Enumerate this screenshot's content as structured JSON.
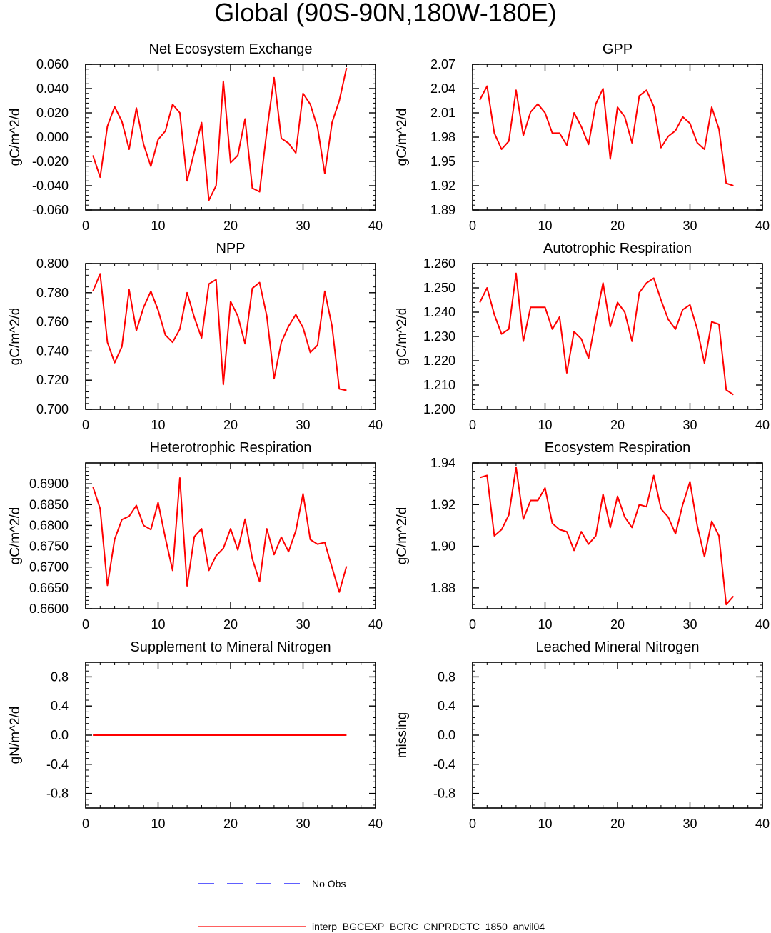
{
  "page_title": "Global (90S-90N,180W-180E)",
  "colors": {
    "model": "#ff0000",
    "obs": "#0000ff",
    "axis": "#000000"
  },
  "legend": {
    "obs_label": "No Obs",
    "model_label": "interp_BGCEXP_BCRC_CNPRDCTC_1850_anvil04"
  },
  "chart_data": [
    {
      "type": "line",
      "title": "Net Ecosystem Exchange",
      "ylabel": "gC/m^2/d",
      "xlim": [
        0,
        40
      ],
      "ylim": [
        -0.06,
        0.06
      ],
      "xticks": [
        0,
        10,
        20,
        30,
        40
      ],
      "xtick_labels": [
        "0",
        "10",
        "20",
        "30",
        "40"
      ],
      "yticks": [
        -0.06,
        -0.04,
        -0.02,
        0.0,
        0.02,
        0.04,
        0.06
      ],
      "ytick_labels": [
        "-0.060",
        "-0.040",
        "-0.020",
        "0.000",
        "0.020",
        "0.040",
        "0.060"
      ],
      "x": [
        1,
        2,
        3,
        4,
        5,
        6,
        7,
        8,
        9,
        10,
        11,
        12,
        13,
        14,
        15,
        16,
        17,
        18,
        19,
        20,
        21,
        22,
        23,
        24,
        25,
        26,
        27,
        28,
        29,
        30,
        31,
        32,
        33,
        34,
        35,
        36
      ],
      "series": [
        {
          "name": "interp_BGCEXP_BCRC_CNPRDCTC_1850_anvil04",
          "values": [
            -0.015,
            -0.033,
            0.009,
            0.025,
            0.013,
            -0.01,
            0.024,
            -0.006,
            -0.024,
            -0.002,
            0.005,
            0.027,
            0.02,
            -0.036,
            -0.012,
            0.012,
            -0.052,
            -0.04,
            0.046,
            -0.021,
            -0.015,
            0.015,
            -0.042,
            -0.045,
            0.005,
            0.049,
            -0.001,
            -0.005,
            -0.013,
            0.036,
            0.027,
            0.008,
            -0.03,
            0.012,
            0.03,
            0.057
          ]
        }
      ]
    },
    {
      "type": "line",
      "title": "GPP",
      "ylabel": "gC/m^2/d",
      "xlim": [
        0,
        40
      ],
      "ylim": [
        1.89,
        2.07
      ],
      "xticks": [
        0,
        10,
        20,
        30,
        40
      ],
      "xtick_labels": [
        "0",
        "10",
        "20",
        "30",
        "40"
      ],
      "yticks": [
        1.89,
        1.92,
        1.95,
        1.98,
        2.01,
        2.04,
        2.07
      ],
      "ytick_labels": [
        "1.89",
        "1.92",
        "1.95",
        "1.98",
        "2.01",
        "2.04",
        "2.07"
      ],
      "x": [
        1,
        2,
        3,
        4,
        5,
        6,
        7,
        8,
        9,
        10,
        11,
        12,
        13,
        14,
        15,
        16,
        17,
        18,
        19,
        20,
        21,
        22,
        23,
        24,
        25,
        26,
        27,
        28,
        29,
        30,
        31,
        32,
        33,
        34,
        35,
        36
      ],
      "series": [
        {
          "name": "interp_BGCEXP_BCRC_CNPRDCTC_1850_anvil04",
          "values": [
            2.026,
            2.043,
            1.985,
            1.965,
            1.975,
            2.038,
            1.982,
            2.011,
            2.021,
            2.01,
            1.985,
            1.985,
            1.97,
            2.01,
            1.993,
            1.971,
            2.021,
            2.04,
            1.953,
            2.017,
            2.005,
            1.973,
            2.031,
            2.038,
            2.018,
            1.967,
            1.981,
            1.988,
            2.005,
            1.997,
            1.973,
            1.965,
            2.017,
            1.99,
            1.923,
            1.92
          ]
        }
      ]
    },
    {
      "type": "line",
      "title": "NPP",
      "ylabel": "gC/m^2/d",
      "xlim": [
        0,
        40
      ],
      "ylim": [
        0.7,
        0.8
      ],
      "xticks": [
        0,
        10,
        20,
        30,
        40
      ],
      "xtick_labels": [
        "0",
        "10",
        "20",
        "30",
        "40"
      ],
      "yticks": [
        0.7,
        0.72,
        0.74,
        0.76,
        0.78,
        0.8
      ],
      "ytick_labels": [
        "0.700",
        "0.720",
        "0.740",
        "0.760",
        "0.780",
        "0.800"
      ],
      "x": [
        1,
        2,
        3,
        4,
        5,
        6,
        7,
        8,
        9,
        10,
        11,
        12,
        13,
        14,
        15,
        16,
        17,
        18,
        19,
        20,
        21,
        22,
        23,
        24,
        25,
        26,
        27,
        28,
        29,
        30,
        31,
        32,
        33,
        34,
        35,
        36
      ],
      "series": [
        {
          "name": "interp_BGCEXP_BCRC_CNPRDCTC_1850_anvil04",
          "values": [
            0.781,
            0.793,
            0.746,
            0.732,
            0.743,
            0.782,
            0.754,
            0.77,
            0.781,
            0.768,
            0.751,
            0.746,
            0.755,
            0.78,
            0.763,
            0.749,
            0.786,
            0.789,
            0.717,
            0.774,
            0.764,
            0.745,
            0.783,
            0.787,
            0.764,
            0.721,
            0.746,
            0.757,
            0.765,
            0.756,
            0.739,
            0.744,
            0.781,
            0.757,
            0.714,
            0.713
          ]
        }
      ]
    },
    {
      "type": "line",
      "title": "Autotrophic Respiration",
      "ylabel": "gC/m^2/d",
      "xlim": [
        0,
        40
      ],
      "ylim": [
        1.2,
        1.26
      ],
      "xticks": [
        0,
        10,
        20,
        30,
        40
      ],
      "xtick_labels": [
        "0",
        "10",
        "20",
        "30",
        "40"
      ],
      "yticks": [
        1.2,
        1.21,
        1.22,
        1.23,
        1.24,
        1.25,
        1.26
      ],
      "ytick_labels": [
        "1.200",
        "1.210",
        "1.220",
        "1.230",
        "1.240",
        "1.250",
        "1.260"
      ],
      "x": [
        1,
        2,
        3,
        4,
        5,
        6,
        7,
        8,
        9,
        10,
        11,
        12,
        13,
        14,
        15,
        16,
        17,
        18,
        19,
        20,
        21,
        22,
        23,
        24,
        25,
        26,
        27,
        28,
        29,
        30,
        31,
        32,
        33,
        34,
        35,
        36
      ],
      "series": [
        {
          "name": "interp_BGCEXP_BCRC_CNPRDCTC_1850_anvil04",
          "values": [
            1.244,
            1.25,
            1.239,
            1.231,
            1.233,
            1.256,
            1.228,
            1.242,
            1.242,
            1.242,
            1.233,
            1.238,
            1.215,
            1.232,
            1.229,
            1.221,
            1.237,
            1.252,
            1.234,
            1.244,
            1.24,
            1.228,
            1.248,
            1.252,
            1.254,
            1.245,
            1.237,
            1.233,
            1.241,
            1.243,
            1.233,
            1.219,
            1.236,
            1.235,
            1.208,
            1.206
          ]
        }
      ]
    },
    {
      "type": "line",
      "title": "Heterotrophic Respiration",
      "ylabel": "gC/m^2/d",
      "xlim": [
        0,
        40
      ],
      "ylim": [
        0.66,
        0.695
      ],
      "xticks": [
        0,
        10,
        20,
        30,
        40
      ],
      "xtick_labels": [
        "0",
        "10",
        "20",
        "30",
        "40"
      ],
      "yticks": [
        0.66,
        0.665,
        0.67,
        0.675,
        0.68,
        0.685,
        0.69
      ],
      "ytick_labels": [
        "0.6600",
        "0.6650",
        "0.6700",
        "0.6750",
        "0.6800",
        "0.6850",
        "0.6900"
      ],
      "x": [
        1,
        2,
        3,
        4,
        5,
        6,
        7,
        8,
        9,
        10,
        11,
        12,
        13,
        14,
        15,
        16,
        17,
        18,
        19,
        20,
        21,
        22,
        23,
        24,
        25,
        26,
        27,
        28,
        29,
        30,
        31,
        32,
        33,
        34,
        35,
        36
      ],
      "series": [
        {
          "name": "interp_BGCEXP_BCRC_CNPRDCTC_1850_anvil04",
          "values": [
            0.6893,
            0.684,
            0.6656,
            0.6767,
            0.6814,
            0.6822,
            0.6848,
            0.68,
            0.679,
            0.6855,
            0.677,
            0.6692,
            0.6914,
            0.6655,
            0.6773,
            0.6792,
            0.6692,
            0.6727,
            0.6745,
            0.6792,
            0.6741,
            0.6815,
            0.672,
            0.6665,
            0.6792,
            0.673,
            0.6772,
            0.6737,
            0.6787,
            0.6876,
            0.6766,
            0.6755,
            0.6759,
            0.6699,
            0.664,
            0.6702
          ]
        }
      ]
    },
    {
      "type": "line",
      "title": "Ecosystem Respiration",
      "ylabel": "gC/m^2/d",
      "xlim": [
        0,
        40
      ],
      "ylim": [
        1.87,
        1.94
      ],
      "xticks": [
        0,
        10,
        20,
        30,
        40
      ],
      "xtick_labels": [
        "0",
        "10",
        "20",
        "30",
        "40"
      ],
      "yticks": [
        1.88,
        1.9,
        1.92,
        1.94
      ],
      "ytick_labels": [
        "1.88",
        "1.90",
        "1.92",
        "1.94"
      ],
      "x": [
        1,
        2,
        3,
        4,
        5,
        6,
        7,
        8,
        9,
        10,
        11,
        12,
        13,
        14,
        15,
        16,
        17,
        18,
        19,
        20,
        21,
        22,
        23,
        24,
        25,
        26,
        27,
        28,
        29,
        30,
        31,
        32,
        33,
        34,
        35,
        36
      ],
      "series": [
        {
          "name": "interp_BGCEXP_BCRC_CNPRDCTC_1850_anvil04",
          "values": [
            1.933,
            1.934,
            1.905,
            1.908,
            1.915,
            1.938,
            1.913,
            1.922,
            1.922,
            1.928,
            1.911,
            1.908,
            1.907,
            1.898,
            1.907,
            1.901,
            1.905,
            1.925,
            1.909,
            1.924,
            1.914,
            1.909,
            1.92,
            1.919,
            1.934,
            1.918,
            1.914,
            1.906,
            1.92,
            1.931,
            1.91,
            1.895,
            1.912,
            1.905,
            1.872,
            1.876
          ]
        }
      ]
    },
    {
      "type": "line",
      "title": "Supplement to Mineral Nitrogen",
      "ylabel": "gN/m^2/d",
      "xlim": [
        0,
        40
      ],
      "ylim": [
        -1,
        1
      ],
      "xticks": [
        0,
        10,
        20,
        30,
        40
      ],
      "xtick_labels": [
        "0",
        "10",
        "20",
        "30",
        "40"
      ],
      "yticks": [
        -0.8,
        -0.4,
        0.0,
        0.4,
        0.8
      ],
      "ytick_labels": [
        "-0.8",
        "-0.4",
        "0.0",
        "0.4",
        "0.8"
      ],
      "x": [
        1,
        2,
        3,
        4,
        5,
        6,
        7,
        8,
        9,
        10,
        11,
        12,
        13,
        14,
        15,
        16,
        17,
        18,
        19,
        20,
        21,
        22,
        23,
        24,
        25,
        26,
        27,
        28,
        29,
        30,
        31,
        32,
        33,
        34,
        35,
        36
      ],
      "series": [
        {
          "name": "interp_BGCEXP_BCRC_CNPRDCTC_1850_anvil04",
          "values": [
            0,
            0,
            0,
            0,
            0,
            0,
            0,
            0,
            0,
            0,
            0,
            0,
            0,
            0,
            0,
            0,
            0,
            0,
            0,
            0,
            0,
            0,
            0,
            0,
            0,
            0,
            0,
            0,
            0,
            0,
            0,
            0,
            0,
            0,
            0,
            0
          ]
        }
      ]
    },
    {
      "type": "line",
      "title": "Leached Mineral Nitrogen",
      "ylabel": "missing",
      "xlim": [
        0,
        40
      ],
      "ylim": [
        -1,
        1
      ],
      "xticks": [
        0,
        10,
        20,
        30,
        40
      ],
      "xtick_labels": [
        "0",
        "10",
        "20",
        "30",
        "40"
      ],
      "yticks": [
        -0.8,
        -0.4,
        0.0,
        0.4,
        0.8
      ],
      "ytick_labels": [
        "-0.8",
        "-0.4",
        "0.0",
        "0.4",
        "0.8"
      ],
      "x": [],
      "series": []
    }
  ]
}
